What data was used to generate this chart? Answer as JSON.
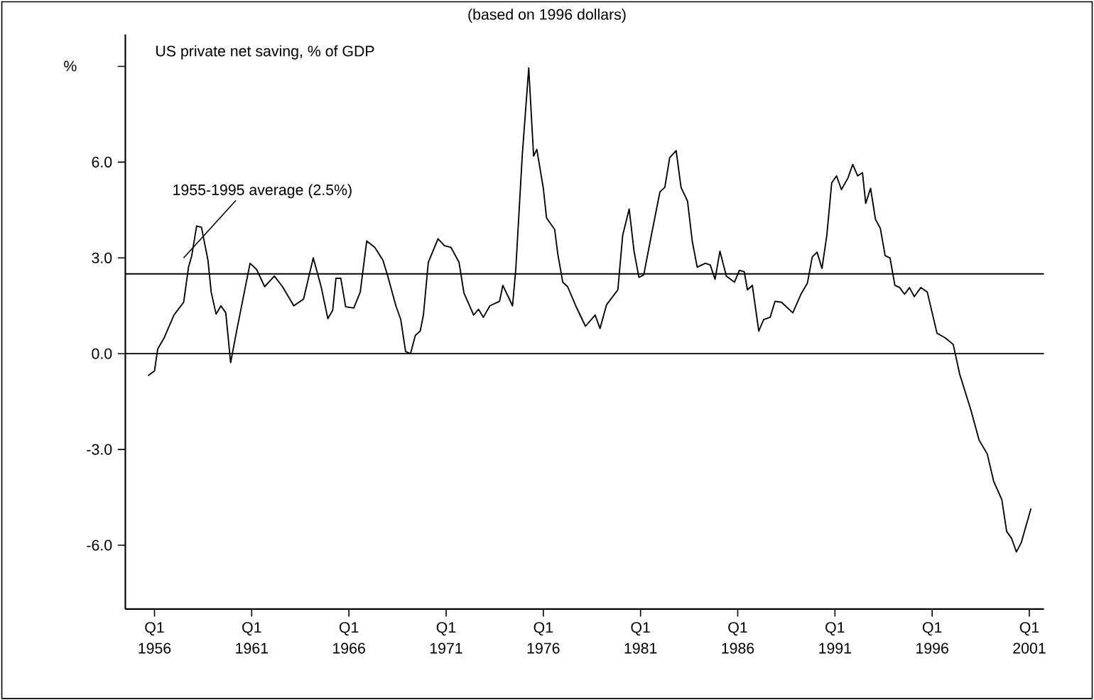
{
  "chart_data": {
    "type": "line",
    "title": "US private net saving, % of GDP",
    "subtitle": "(based on 1996 dollars)",
    "ylabel": "%",
    "x": [
      "1955-09",
      "1956-01",
      "1956-03",
      "1956-07",
      "1957-01",
      "1957-07",
      "1957-10",
      "1957-12",
      "1958-03",
      "1958-06",
      "1958-10",
      "1958-12",
      "1959-03",
      "1959-06",
      "1959-09",
      "1959-12",
      "1960-04",
      "1960-09",
      "1960-12",
      "1961-04",
      "1961-09",
      "1962-03",
      "1962-08",
      "1963-03",
      "1963-09",
      "1964-03",
      "1964-08",
      "1964-12",
      "1965-03",
      "1965-05",
      "1965-08",
      "1965-11",
      "1966-04",
      "1966-08",
      "1966-12",
      "1967-05",
      "1967-10",
      "1968-01",
      "1968-06",
      "1968-09",
      "1968-12",
      "1969-03",
      "1969-06",
      "1969-09",
      "1969-11",
      "1970-02",
      "1970-08",
      "1970-12",
      "1971-04",
      "1971-09",
      "1971-12",
      "1972-06",
      "1972-09",
      "1972-12",
      "1973-04",
      "1973-10",
      "1973-12",
      "1974-06",
      "1974-08",
      "1974-12",
      "1975-04",
      "1975-07",
      "1975-09",
      "1976-01",
      "1976-03",
      "1976-08",
      "1976-10",
      "1977-01",
      "1977-04",
      "1977-09",
      "1978-03",
      "1978-09",
      "1978-12",
      "1979-04",
      "1979-11",
      "1980-02",
      "1980-06",
      "1980-09",
      "1980-12",
      "1981-03",
      "1981-08",
      "1982-01",
      "1982-04",
      "1982-07",
      "1982-11",
      "1983-02",
      "1983-06",
      "1983-09",
      "1983-12",
      "1984-05",
      "1984-08",
      "1984-11",
      "1985-02",
      "1985-06",
      "1985-11",
      "1986-02",
      "1986-05",
      "1986-07",
      "1986-10",
      "1987-02",
      "1987-05",
      "1987-09",
      "1987-12",
      "1988-04",
      "1988-11",
      "1989-04",
      "1989-08",
      "1989-11",
      "1990-02",
      "1990-05",
      "1990-08",
      "1990-11",
      "1991-02",
      "1991-05",
      "1991-09",
      "1991-12",
      "1992-03",
      "1992-06",
      "1992-08",
      "1992-11",
      "1993-02",
      "1993-05",
      "1993-08",
      "1993-11",
      "1994-02",
      "1994-05",
      "1994-08",
      "1994-11",
      "1995-02",
      "1995-06",
      "1995-10",
      "1996-04",
      "1996-09",
      "1997-02",
      "1997-06",
      "1998-01",
      "1998-06",
      "1998-11",
      "1999-03",
      "1999-08",
      "1999-11",
      "2000-02",
      "2000-05",
      "2000-08",
      "2001-02"
    ],
    "series": [
      {
        "color": "#000000",
        "values": [
          -0.69,
          -0.54,
          0.15,
          0.5,
          1.21,
          1.61,
          2.71,
          3.07,
          4.0,
          3.96,
          2.93,
          1.93,
          1.24,
          1.5,
          1.28,
          -0.28,
          0.79,
          2.07,
          2.83,
          2.64,
          2.1,
          2.43,
          2.1,
          1.5,
          1.71,
          3.0,
          2.07,
          1.1,
          1.36,
          2.36,
          2.36,
          1.47,
          1.43,
          1.93,
          3.53,
          3.33,
          2.93,
          2.43,
          1.5,
          1.07,
          0.07,
          0.0,
          0.57,
          0.71,
          1.21,
          2.86,
          3.6,
          3.38,
          3.33,
          2.86,
          1.9,
          1.21,
          1.39,
          1.14,
          1.5,
          1.64,
          2.14,
          1.5,
          2.64,
          6.21,
          8.95,
          6.19,
          6.4,
          5.18,
          4.25,
          3.89,
          3.1,
          2.24,
          2.1,
          1.5,
          0.86,
          1.21,
          0.79,
          1.53,
          2.0,
          3.71,
          4.53,
          3.21,
          2.39,
          2.47,
          3.79,
          5.07,
          5.21,
          6.14,
          6.36,
          5.21,
          4.78,
          3.5,
          2.71,
          2.83,
          2.78,
          2.33,
          3.21,
          2.43,
          2.24,
          2.61,
          2.57,
          2.0,
          2.14,
          0.71,
          1.07,
          1.14,
          1.64,
          1.61,
          1.28,
          1.86,
          2.21,
          3.03,
          3.18,
          2.67,
          3.71,
          5.35,
          5.57,
          5.14,
          5.5,
          5.93,
          5.57,
          5.67,
          4.71,
          5.18,
          4.21,
          3.93,
          3.07,
          3.0,
          2.14,
          2.07,
          1.86,
          2.07,
          1.79,
          2.07,
          1.93,
          0.64,
          0.5,
          0.29,
          -0.64,
          -1.78,
          -2.71,
          -3.14,
          -4.0,
          -4.57,
          -5.57,
          -5.78,
          -6.21,
          -5.92,
          -4.85
        ]
      }
    ],
    "xlim": [
      "1954-07",
      "2001-10"
    ],
    "ylim": [
      -8,
      10
    ],
    "xticks": [
      {
        "value": "1956-01",
        "label": "Q1 1956"
      },
      {
        "value": "1961-01",
        "label": "Q1 1961"
      },
      {
        "value": "1966-01",
        "label": "Q1 1966"
      },
      {
        "value": "1971-01",
        "label": "Q1 1971"
      },
      {
        "value": "1976-01",
        "label": "Q1 1976"
      },
      {
        "value": "1981-01",
        "label": "Q1 1981"
      },
      {
        "value": "1986-01",
        "label": "Q1 1986"
      },
      {
        "value": "1991-01",
        "label": "Q1 1991"
      },
      {
        "value": "1996-01",
        "label": "Q1 1996"
      },
      {
        "value": "2001-01",
        "label": "Q1 2001"
      }
    ],
    "yticks": [
      {
        "value": -6,
        "label": "-6.0"
      },
      {
        "value": -3,
        "label": "-3.0"
      },
      {
        "value": 0,
        "label": "0.0"
      },
      {
        "value": 3,
        "label": "3.0"
      },
      {
        "value": 6,
        "label": "6.0"
      },
      {
        "value": 9,
        "label": null
      }
    ],
    "ref_lines": [
      {
        "axis": "y",
        "value": 2.5,
        "label": "1955-1995 average (2.5%)",
        "color": "#000000"
      },
      {
        "axis": "y",
        "value": 0,
        "color": "#000000"
      }
    ],
    "grid": false
  }
}
